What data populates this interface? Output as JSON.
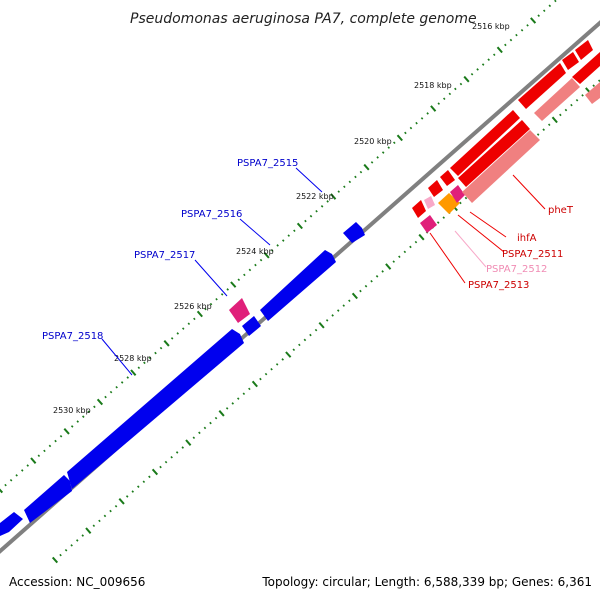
{
  "title": "Pseudomonas aeruginosa PA7, complete genome",
  "footer": {
    "accession": "Accession: NC_009656",
    "summary": "Topology: circular; Length: 6,588,339 bp; Genes: 6,361"
  },
  "ticks": [
    "2516 kbp",
    "2518 kbp",
    "2520 kbp",
    "2522 kbp",
    "2524 kbp",
    "2526 kbp",
    "2528 kbp",
    "2530 kbp"
  ],
  "gene_labels": {
    "PSPA7_2515": "PSPA7_2515",
    "PSPA7_2516": "PSPA7_2516",
    "PSPA7_2517": "PSPA7_2517",
    "PSPA7_2518": "PSPA7_2518",
    "pheT": "pheT",
    "ihfA": "ihfA",
    "PSPA7_2511": "PSPA7_2511",
    "PSPA7_2512": "PSPA7_2512",
    "PSPA7_2513": "PSPA7_2513"
  },
  "colors": {
    "backbone": "#808080",
    "forward_gene": "#0000ee",
    "reverse_gene": "#ee0000",
    "reverse_shadow": "#f08080",
    "magenta_gene": "#e0207a",
    "orange_gene": "#ff9900",
    "light_pink": "#f8a8c8",
    "tick_green": "#1a7a1a"
  }
}
